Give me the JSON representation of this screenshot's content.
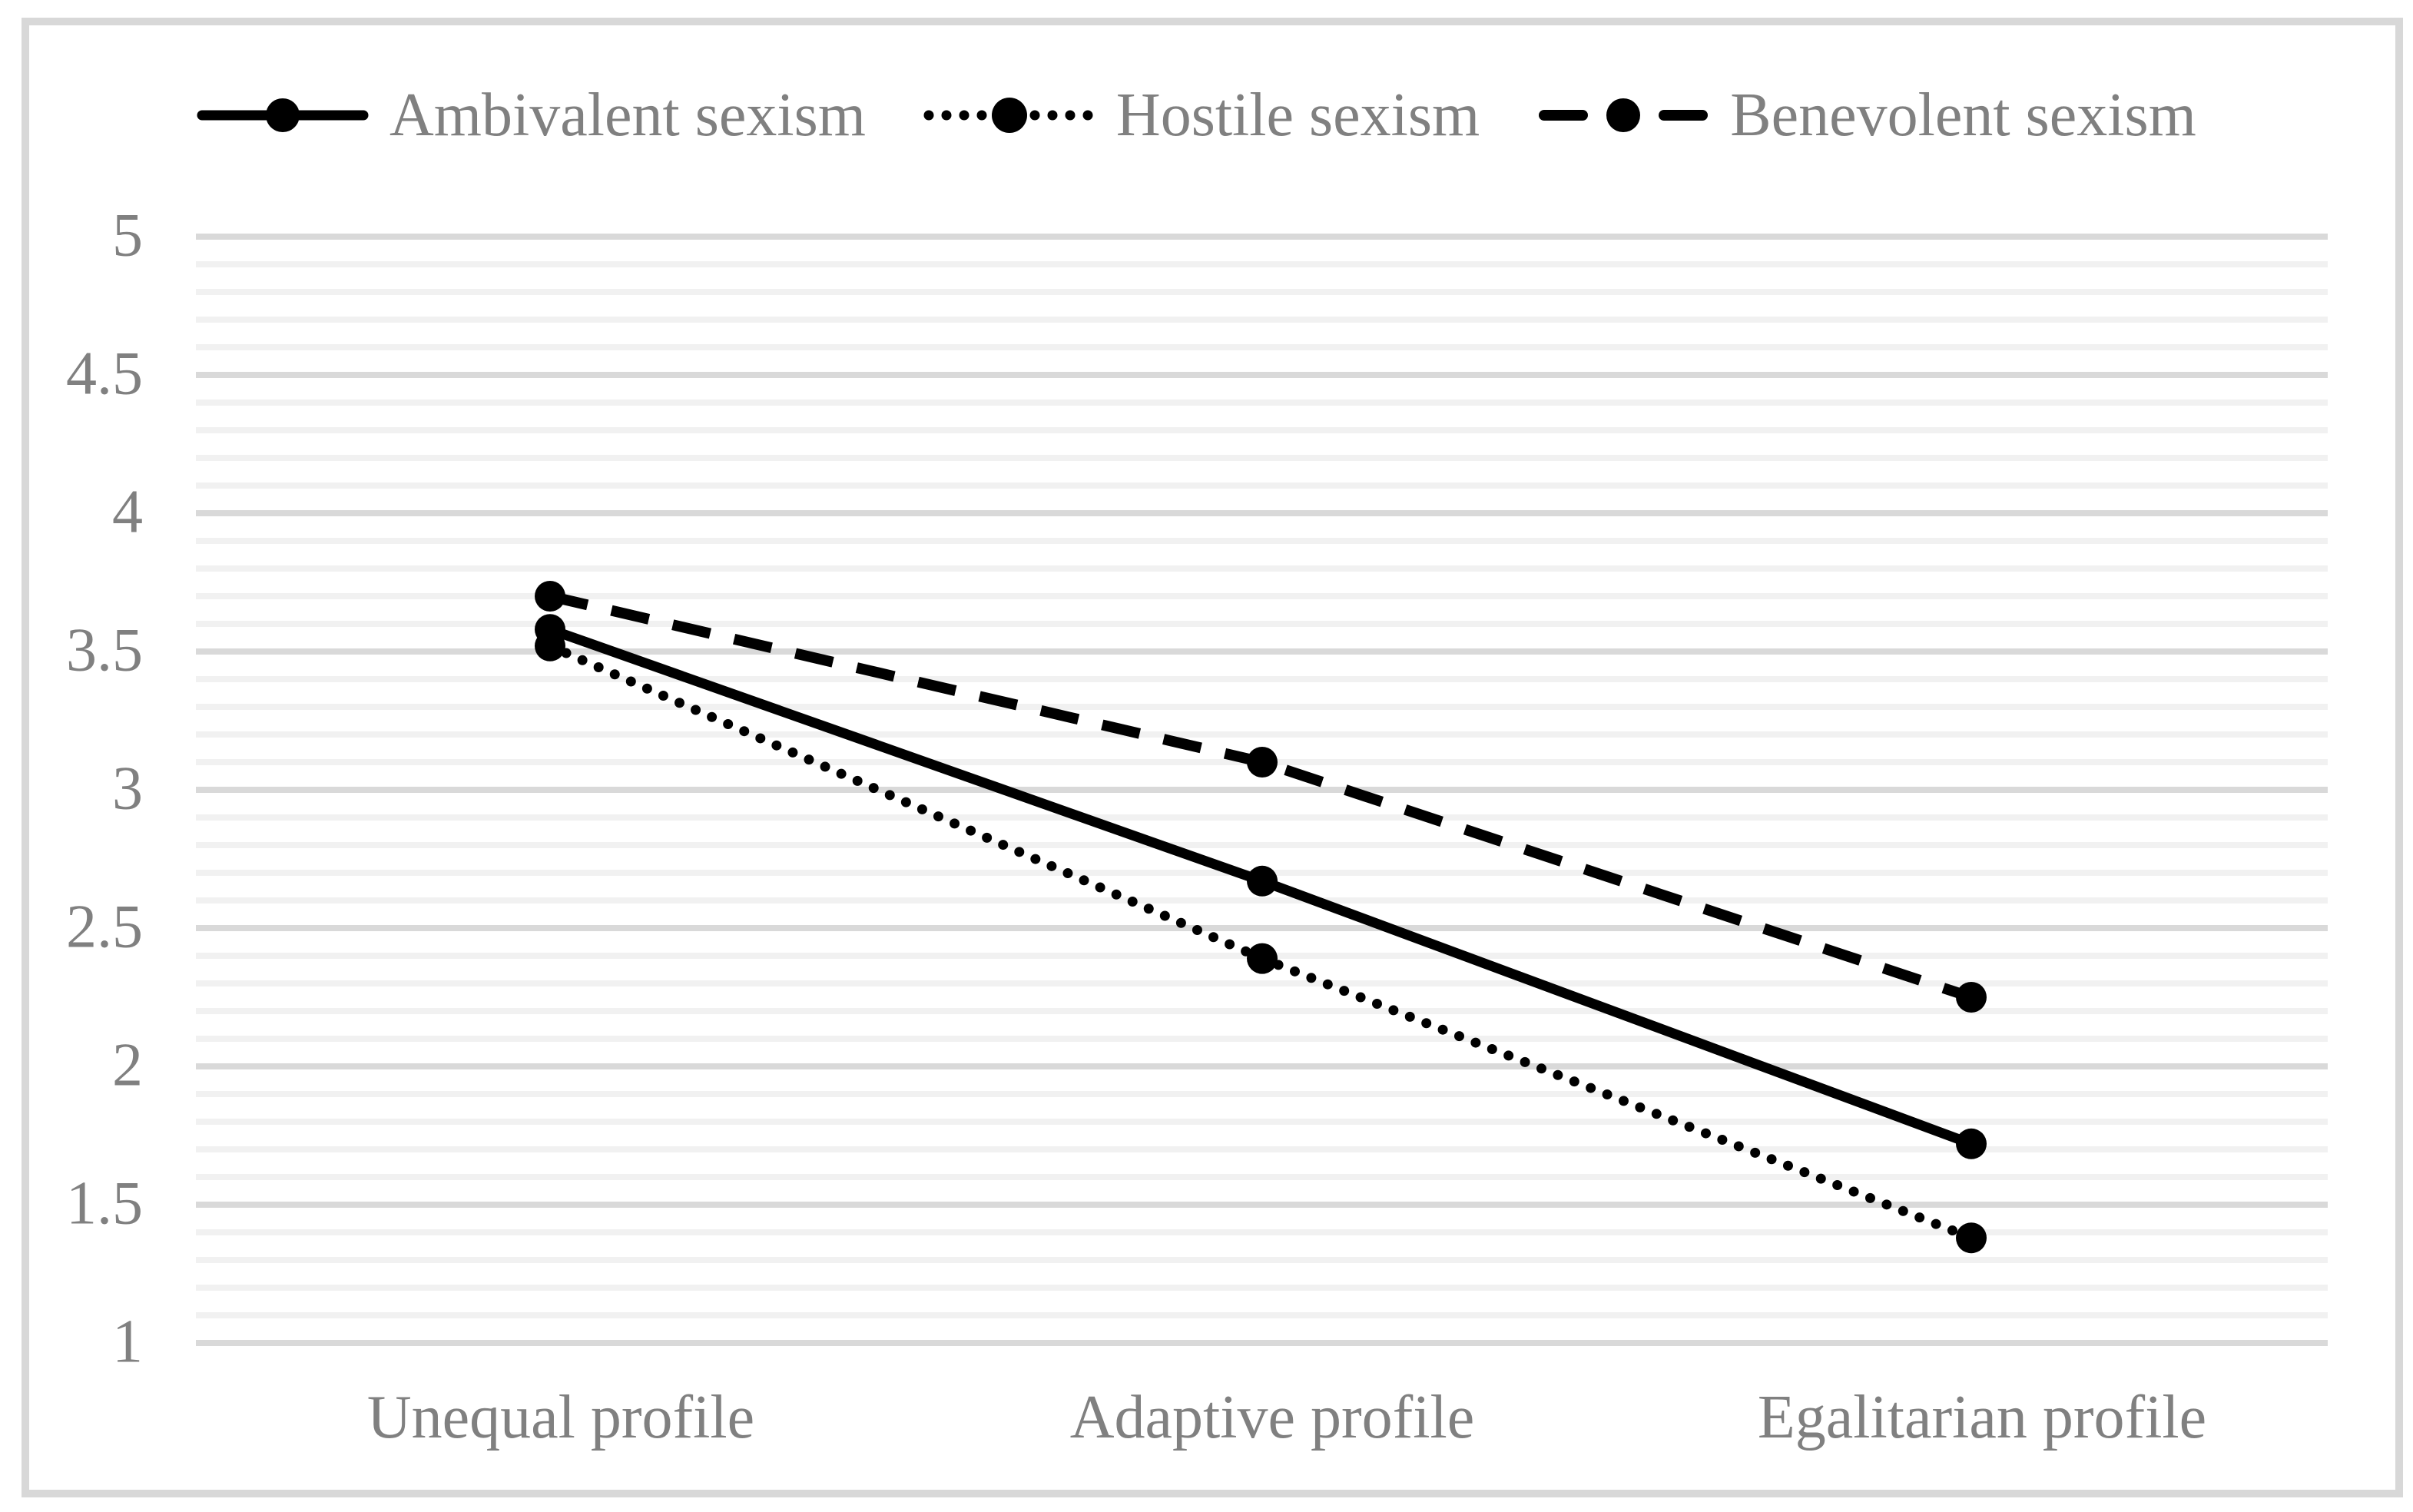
{
  "chart_data": {
    "type": "line",
    "title": "",
    "categories": [
      "Unequal profile",
      "Adaptive profile",
      "Egalitarian profile"
    ],
    "series": [
      {
        "name": "Ambivalent sexism",
        "line_style": "solid",
        "marker": "circle",
        "color": "#000000",
        "values": [
          3.58,
          2.67,
          1.72
        ]
      },
      {
        "name": "Hostile sexism",
        "line_style": "dotted",
        "marker": "circle",
        "color": "#000000",
        "values": [
          3.52,
          2.39,
          1.38
        ]
      },
      {
        "name": "Benevolent sexism",
        "line_style": "dashed",
        "marker": "circle",
        "color": "#000000",
        "values": [
          3.7,
          3.1,
          2.25
        ]
      }
    ],
    "y_axis": {
      "min": 1,
      "max": 5,
      "major_step": 0.5,
      "minor_step": 0.1,
      "tick_labels": [
        "5",
        "4.5",
        "4",
        "3.5",
        "3",
        "2.5",
        "2",
        "1.5",
        "1"
      ]
    },
    "x_axis": {
      "label": ""
    },
    "legend_position": "top",
    "grid": "horizontal, major and minor lines",
    "colors": {
      "series_line": "#000000",
      "text": "#808080",
      "major_gridline": "#d9d9d9",
      "minor_gridline": "#f1f1f1",
      "frame_border": "#d8d8d8",
      "background": "#ffffff"
    }
  }
}
